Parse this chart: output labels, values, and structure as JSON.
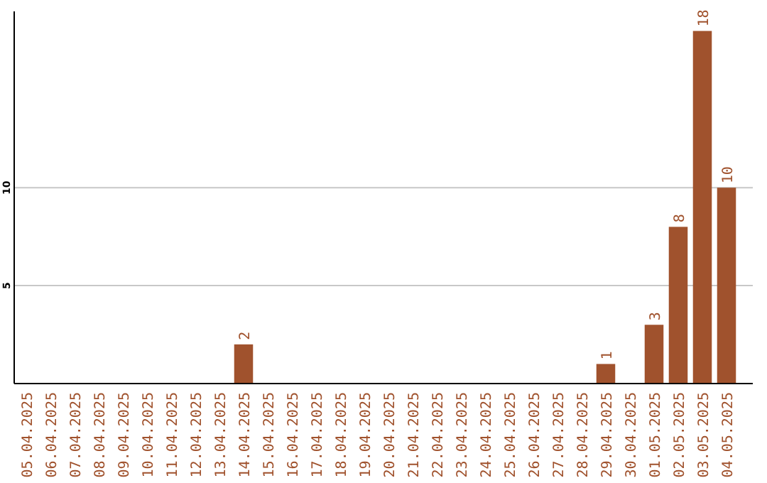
{
  "chart_data": {
    "type": "bar",
    "categories": [
      "05.04.2025",
      "06.04.2025",
      "07.04.2025",
      "08.04.2025",
      "09.04.2025",
      "10.04.2025",
      "11.04.2025",
      "12.04.2025",
      "13.04.2025",
      "14.04.2025",
      "15.04.2025",
      "16.04.2025",
      "17.04.2025",
      "18.04.2025",
      "19.04.2025",
      "20.04.2025",
      "21.04.2025",
      "22.04.2025",
      "23.04.2025",
      "24.04.2025",
      "25.04.2025",
      "26.04.2025",
      "27.04.2025",
      "28.04.2025",
      "29.04.2025",
      "30.04.2025",
      "01.05.2025",
      "02.05.2025",
      "03.05.2025",
      "04.05.2025"
    ],
    "values": [
      0,
      0,
      0,
      0,
      0,
      0,
      0,
      0,
      0,
      2,
      0,
      0,
      0,
      0,
      0,
      0,
      0,
      0,
      0,
      0,
      0,
      0,
      0,
      0,
      1,
      0,
      3,
      8,
      18,
      10
    ],
    "value_labels": [
      null,
      null,
      null,
      null,
      null,
      null,
      null,
      null,
      null,
      "2",
      null,
      null,
      null,
      null,
      null,
      null,
      null,
      null,
      null,
      null,
      null,
      null,
      null,
      null,
      "1",
      null,
      "3",
      "8",
      "18",
      "10"
    ],
    "color": "#a0522d",
    "ylim": [
      0,
      19
    ],
    "yticks": [
      5,
      10
    ],
    "grid": "y"
  }
}
